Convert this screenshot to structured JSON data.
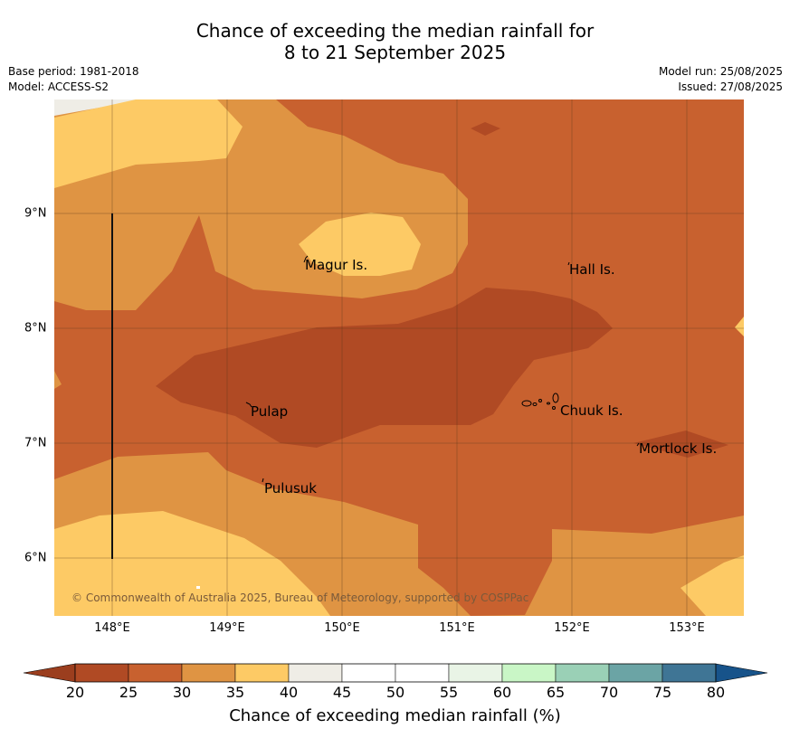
{
  "title_line1": "Chance of exceeding the median rainfall for",
  "title_line2": "8 to 21 September 2025",
  "base_period": "Base period: 1981-2018",
  "model": "Model: ACCESS-S2",
  "model_run": "Model run: 25/08/2025",
  "issued": "Issued: 27/08/2025",
  "copyright": "© Commonwealth of Australia 2025, Bureau of Meteorology, supported by COSPPac",
  "lat_labels": [
    "9°N",
    "8°N",
    "7°N",
    "6°N"
  ],
  "lon_labels": [
    "148°E",
    "149°E",
    "150°E",
    "151°E",
    "152°E",
    "153°E"
  ],
  "places": {
    "magur": "Magur Is.",
    "hall": "Hall Is.",
    "pulap": "Pulap",
    "chuuk": "Chuuk Is.",
    "mortlock": "Mortlock Is.",
    "pulusuk": "Pulusuk"
  },
  "colorbar": {
    "ticks": [
      "20",
      "25",
      "30",
      "35",
      "40",
      "45",
      "50",
      "55",
      "60",
      "65",
      "70",
      "75",
      "80"
    ],
    "colors": [
      "#b04a24",
      "#c8612f",
      "#df9443",
      "#fdca65",
      "#efede6",
      "#ffffff",
      "#ffffff",
      "#e9f4e6",
      "#c9f6c6",
      "#9ad0b6",
      "#6ba4a5",
      "#3f7595"
    ],
    "under_color": "#9b3e1e",
    "over_color": "#17538a",
    "label": "Chance of exceeding median rainfall (%)"
  }
}
